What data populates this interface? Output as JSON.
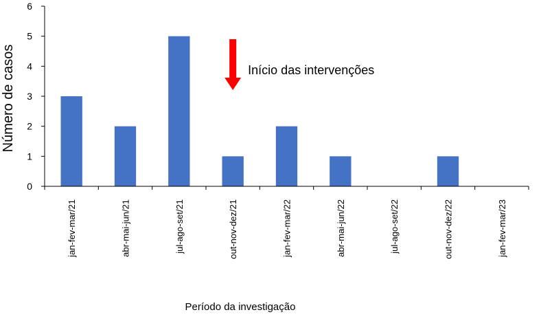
{
  "chart_data": {
    "type": "bar",
    "categories": [
      "jan-fev-mar/21",
      "abr-mai-jun/21",
      "jul-ago-set/21",
      "out-nov-dez/21",
      "jan-fev-mar/22",
      "abr-mai-jun/22",
      "jul-ago-set/22",
      "out-nov-dez/22",
      "jan-fev-mar/23"
    ],
    "values": [
      3,
      2,
      5,
      1,
      2,
      1,
      0,
      1,
      0
    ],
    "xlabel": "Período da investigação",
    "ylabel": "Número de casos",
    "ylim": [
      0,
      6
    ],
    "yticks": [
      "0",
      "1",
      "2",
      "3",
      "4",
      "5",
      "6"
    ],
    "grid": false,
    "bar_color": "#4472C4",
    "annotation": {
      "text": "Início das intervenções",
      "arrow_color": "#FF0000",
      "arrow_category": "out-nov-dez/21"
    }
  }
}
